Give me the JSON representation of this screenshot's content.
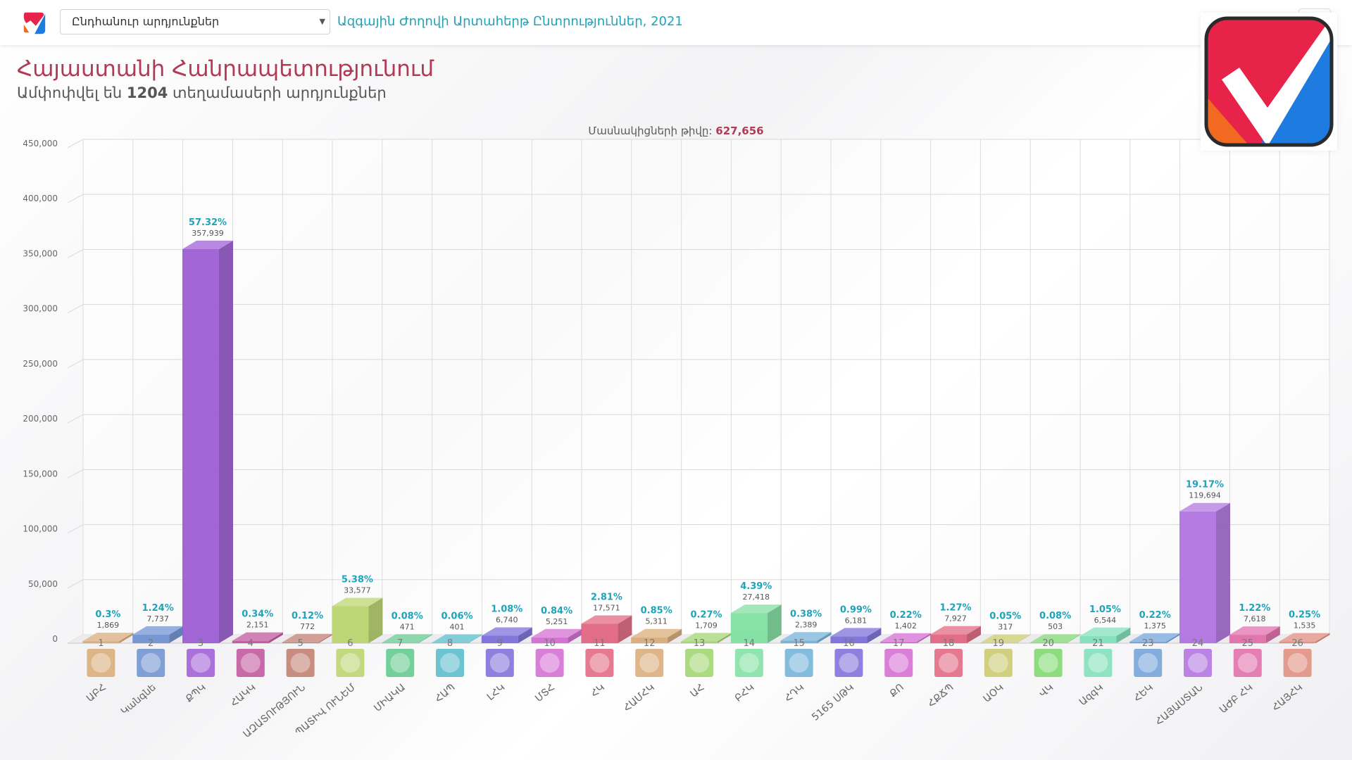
{
  "header": {
    "select_value": "Ընդհանուր արդյունքներ",
    "election_title": "Ազգային Ժողովի Արտահերթ Ընտրություններ, 2021"
  },
  "page": {
    "title": "Հայաստանի Հանրապետությունում",
    "subtitle_prefix": "Ամփոփվել են",
    "subtitle_count": "1204",
    "subtitle_suffix": "տեղամասերի արդյունքներ",
    "participants_label": "Մասնակիցների թիվը:",
    "participants_value": "627,656"
  },
  "colors": {
    "accent_teal": "#1fa3b8",
    "title_red": "#b23a57"
  },
  "chart_data": {
    "type": "bar",
    "ylim": [
      0,
      450000
    ],
    "yticks": [
      "0",
      "50,000",
      "100,000",
      "150,000",
      "200,000",
      "250,000",
      "300,000",
      "350,000",
      "400,000",
      "450,000"
    ],
    "grid": true,
    "bars": [
      {
        "num": "1",
        "name": "ԱԲՀ",
        "value": 1869,
        "value_label": "1,869",
        "pct": "0.3%",
        "color": "#d9a974",
        "icon": "orange-square-logo"
      },
      {
        "num": "2",
        "name": "Կանգնե",
        "value": 7737,
        "value_label": "7,737",
        "pct": "1.24%",
        "color": "#6b8fd0",
        "icon": "spiral-logo"
      },
      {
        "num": "3",
        "name": "ՔՊԿ",
        "value": 357939,
        "value_label": "357,939",
        "pct": "57.32%",
        "color": "#9b59d4",
        "icon": "navy-square-logo"
      },
      {
        "num": "4",
        "name": "ՀԱԿԿ",
        "value": 2151,
        "value_label": "2,151",
        "pct": "0.34%",
        "color": "#c0509a",
        "icon": "wings-logo"
      },
      {
        "num": "5",
        "name": "ԱԶԱՏՈՒԹՅՈՒՆ",
        "value": 772,
        "value_label": "772",
        "pct": "0.12%",
        "color": "#c07a6a",
        "icon": "stripes-logo"
      },
      {
        "num": "6",
        "name": "ՊԱՏԻՎ ՈՒՆԵՄ",
        "value": 33577,
        "value_label": "33,577",
        "pct": "5.38%",
        "color": "#b8d46a",
        "icon": "star-logo"
      },
      {
        "num": "7",
        "name": "ՄԻԱԿԱ",
        "value": 471,
        "value_label": "471",
        "pct": "0.08%",
        "color": "#5cc98a",
        "icon": "text-logo"
      },
      {
        "num": "8",
        "name": "ՀԱՊ",
        "value": 401,
        "value_label": "401",
        "pct": "0.06%",
        "color": "#52b9c9",
        "icon": "blue-badge-logo"
      },
      {
        "num": "9",
        "name": "ԼՀԿ",
        "value": 6740,
        "value_label": "6,740",
        "pct": "1.08%",
        "color": "#7a6ad8",
        "icon": "purple-square-logo"
      },
      {
        "num": "10",
        "name": "ՄՏՀ",
        "value": 5251,
        "value_label": "5,251",
        "pct": "0.84%",
        "color": "#d368d0",
        "icon": "mountain-logo"
      },
      {
        "num": "11",
        "name": "ՀԿ",
        "value": 17571,
        "value_label": "17,571",
        "pct": "2.81%",
        "color": "#e0637d",
        "icon": "round-ornament-logo"
      },
      {
        "num": "12",
        "name": "ՀԱՄՀԿ",
        "value": 5311,
        "value_label": "5,311",
        "pct": "0.85%",
        "color": "#d9a974",
        "icon": "sun-emblem-logo"
      },
      {
        "num": "13",
        "name": "ԱՀ",
        "value": 1709,
        "value_label": "1,709",
        "pct": "0.27%",
        "color": "#9ed46a",
        "icon": "banner-logo"
      },
      {
        "num": "14",
        "name": "ԲՀԿ",
        "value": 27418,
        "value_label": "27,418",
        "pct": "4.39%",
        "color": "#7ddf9f",
        "icon": "arc-logo"
      },
      {
        "num": "15",
        "name": "ՀԴԿ",
        "value": 2389,
        "value_label": "2,389",
        "pct": "0.38%",
        "color": "#6fb0d8",
        "icon": "rooster-logo"
      },
      {
        "num": "16",
        "name": "5165 ՍԹԿ",
        "value": 6181,
        "value_label": "6,181",
        "pct": "0.99%",
        "color": "#7a6ad8",
        "icon": "5165-logo"
      },
      {
        "num": "17",
        "name": "ՔՈ",
        "value": 1402,
        "value_label": "1,402",
        "pct": "0.22%",
        "color": "#d368d0",
        "icon": "green-check-logo"
      },
      {
        "num": "18",
        "name": "ՀՔՃՊ",
        "value": 7927,
        "value_label": "7,927",
        "pct": "1.27%",
        "color": "#e0637d",
        "icon": "text-banner-logo"
      },
      {
        "num": "19",
        "name": "ԱՕԿ",
        "value": 317,
        "value_label": "317",
        "pct": "0.05%",
        "color": "#c9c96a",
        "icon": "dark-shield-logo"
      },
      {
        "num": "20",
        "name": "ՎԿ",
        "value": 503,
        "value_label": "503",
        "pct": "0.08%",
        "color": "#7ad86a",
        "icon": "ararat-logo"
      },
      {
        "num": "21",
        "name": "ԱզգԿ",
        "value": 6544,
        "value_label": "6,544",
        "pct": "1.05%",
        "color": "#7ddfb8",
        "icon": "phoenix-logo"
      },
      {
        "num": "23",
        "name": "ՀԵԿ",
        "value": 1375,
        "value_label": "1,375",
        "pct": "0.22%",
        "color": "#6fa0d8",
        "icon": "flag-logo"
      },
      {
        "num": "24",
        "name": "ՀԱՅԱՍՏԱՆ",
        "value": 119694,
        "value_label": "119,694",
        "pct": "19.17%",
        "color": "#b070e0",
        "icon": "hayastan-logo"
      },
      {
        "num": "25",
        "name": "ԱԺԲ ՀԿ",
        "value": 7618,
        "value_label": "7,618",
        "pct": "1.22%",
        "color": "#e06aa8",
        "icon": "red-figure-logo"
      },
      {
        "num": "26",
        "name": "ՀԱՅՀԿ",
        "value": 1535,
        "value_label": "1,535",
        "pct": "0.25%",
        "color": "#e08a7a",
        "icon": "golden-eagle-logo"
      }
    ]
  }
}
